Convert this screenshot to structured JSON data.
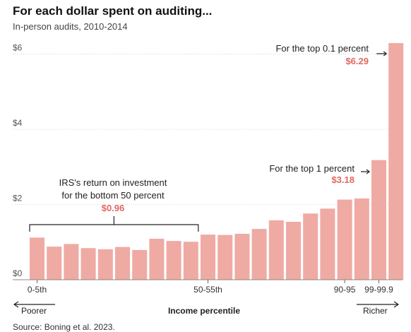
{
  "header": {
    "title": "For each dollar spent on auditing...",
    "subtitle": "In-person audits, 2010-2014"
  },
  "source": "Source: Boning et al. 2023.",
  "colors": {
    "bar": "#efaaa4",
    "highlight": "#e1685f"
  },
  "chart_data": {
    "type": "bar",
    "title": "For each dollar spent on auditing...",
    "subtitle": "In-person audits, 2010-2014",
    "xlabel": "Income percentile",
    "ylabel": "",
    "ylim": [
      0,
      6.29
    ],
    "yticks": [
      {
        "value": 0,
        "label": "$0"
      },
      {
        "value": 2,
        "label": "$2"
      },
      {
        "value": 4,
        "label": "$4"
      },
      {
        "value": 6,
        "label": "$6"
      }
    ],
    "values": [
      1.12,
      0.88,
      0.95,
      0.84,
      0.81,
      0.87,
      0.79,
      1.09,
      1.03,
      1.01,
      1.2,
      1.19,
      1.22,
      1.35,
      1.58,
      1.54,
      1.76,
      1.89,
      2.13,
      2.16,
      3.18,
      6.29
    ],
    "tick_labels": [
      {
        "index": 0,
        "label": "0-5th"
      },
      {
        "index": 10,
        "label": "50-55th"
      },
      {
        "index": 18,
        "label": "90-95"
      },
      {
        "index": 20,
        "label": "99-99.9"
      }
    ],
    "direction_labels": {
      "left": "Poorer",
      "right": "Richer"
    },
    "grid": true,
    "annotations": {
      "bottom50": {
        "line1": "IRS's return on investment",
        "line2": "for the bottom 50 percent",
        "value": "$0.96",
        "from_index": 0,
        "to_index": 9
      },
      "top1": {
        "text": "For the top 1 percent",
        "value": "$3.18",
        "index": 20
      },
      "top01": {
        "text": "For the top 0.1 percent",
        "value": "$6.29",
        "index": 21
      }
    }
  }
}
